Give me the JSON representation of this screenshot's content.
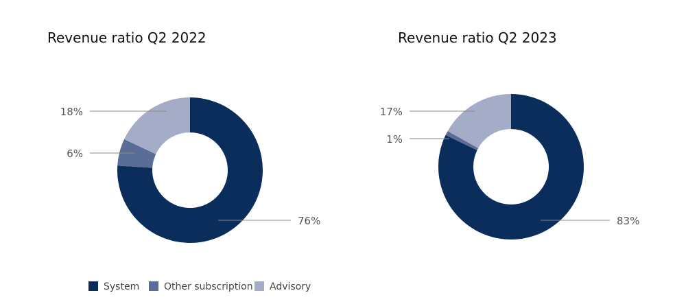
{
  "colors": {
    "System": "#0b2d5b",
    "Other subscription": "#5a6d96",
    "Advisory": "#a4acc7"
  },
  "legend": {
    "items": [
      "System",
      "Other subscription",
      "Advisory"
    ]
  },
  "chart_data": [
    {
      "type": "pie",
      "title": "Revenue ratio Q2 2022",
      "categories": [
        "System",
        "Other subscription",
        "Advisory"
      ],
      "values": [
        76,
        6,
        18
      ],
      "labels": [
        "76%",
        "6%",
        "18%"
      ]
    },
    {
      "type": "pie",
      "title": "Revenue ratio Q2 2023",
      "categories": [
        "System",
        "Other subscription",
        "Advisory"
      ],
      "values": [
        83,
        1,
        17
      ],
      "labels": [
        "83%",
        "1%",
        "17%"
      ]
    }
  ]
}
